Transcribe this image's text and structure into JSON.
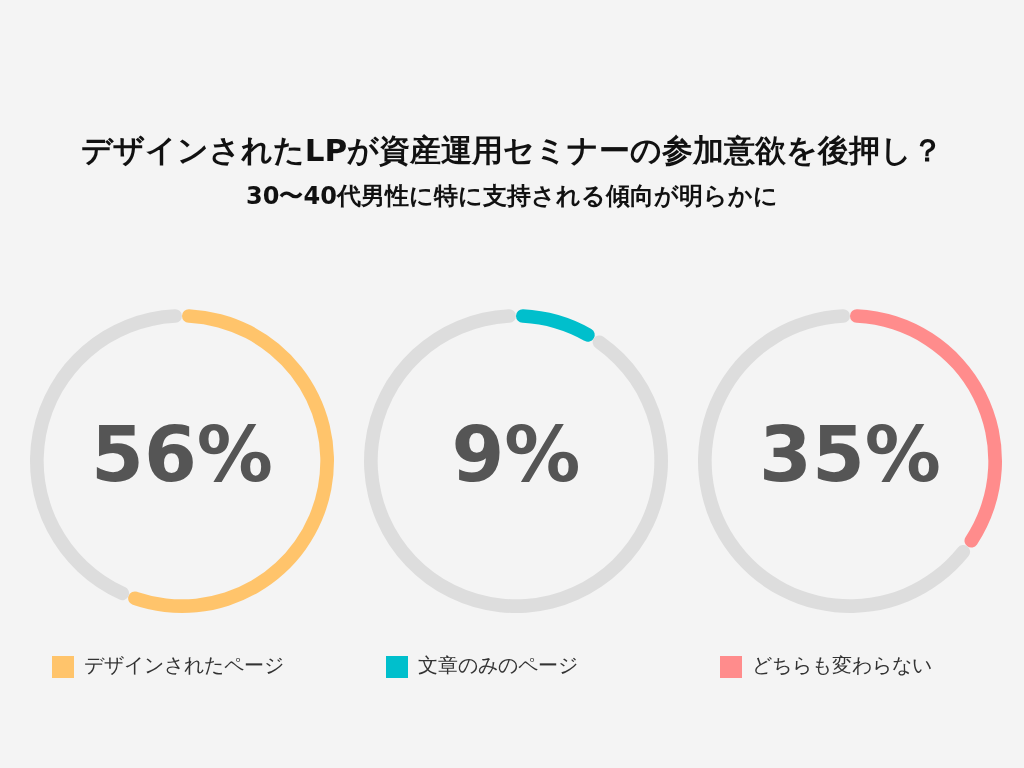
{
  "chart_data": [
    {
      "type": "donut",
      "title": "デザインされたLPが資産運用セミナーの参加意欲を後押し？",
      "subtitle": "30〜40代男性に特に支持される傾向が明らかに",
      "categories": [
        "デザインされたページ",
        null
      ],
      "values": [
        56,
        44
      ],
      "colors": [
        "#ffc46b",
        "#dddddd"
      ],
      "annotations": [
        "56%"
      ],
      "legend": "bottom"
    },
    {
      "type": "donut",
      "categories": [
        "文章のみのページ",
        null
      ],
      "values": [
        9,
        91
      ],
      "colors": [
        "#00bfcc",
        "#dddddd"
      ],
      "annotations": [
        "9%"
      ],
      "legend": "bottom"
    },
    {
      "type": "donut",
      "categories": [
        "どちらも変わらない",
        null
      ],
      "values": [
        35,
        65
      ],
      "colors": [
        "#ff8c8c",
        "#dddddd"
      ],
      "annotations": [
        "35%"
      ],
      "legend": "bottom"
    }
  ]
}
